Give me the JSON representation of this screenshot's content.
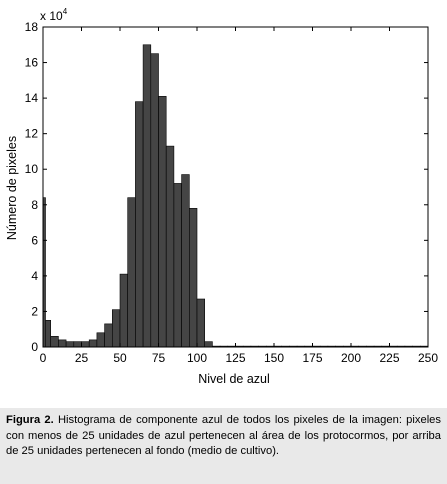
{
  "chart_data": {
    "type": "bar",
    "xlabel": "Nivel de azul",
    "ylabel": "Número de pixeles",
    "y_multiplier_label": "x 10",
    "y_multiplier_exponent": "4",
    "xlim": [
      0,
      250
    ],
    "ylim": [
      0,
      18
    ],
    "x_ticks": [
      "0",
      "25",
      "50",
      "75",
      "100",
      "125",
      "150",
      "175",
      "200",
      "225",
      "250"
    ],
    "y_ticks": [
      "0",
      "2",
      "4",
      "6",
      "8",
      "10",
      "12",
      "14",
      "16",
      "18"
    ],
    "bar_width": 5,
    "bar_color": "#454545",
    "bins": [
      0,
      5,
      10,
      15,
      20,
      25,
      30,
      35,
      40,
      45,
      50,
      55,
      60,
      65,
      70,
      75,
      80,
      85,
      90,
      95,
      100,
      105,
      110,
      115,
      120,
      125,
      130,
      135,
      140,
      145,
      150,
      155,
      160,
      165,
      170,
      175,
      180,
      185,
      190,
      195,
      200,
      205,
      210,
      215,
      220,
      225,
      230,
      235,
      240,
      245
    ],
    "values": [
      1.5,
      0.6,
      0.4,
      0.3,
      0.3,
      0.3,
      0.4,
      0.8,
      1.3,
      2.1,
      4.1,
      8.4,
      13.8,
      17.0,
      16.5,
      14.1,
      11.3,
      9.2,
      9.7,
      7.8,
      2.7,
      0.3,
      0.05,
      0.05,
      0.05,
      0.05,
      0.05,
      0.05,
      0.05,
      0.05,
      0.05,
      0.05,
      0.05,
      0.05,
      0.05,
      0.05,
      0.05,
      0.05,
      0.05,
      0.05,
      0.05,
      0.05,
      0.05,
      0.05,
      0.05,
      0.05,
      0.05,
      0.05,
      0.05,
      0.05
    ],
    "spike": {
      "x": 0,
      "value": 8.4
    },
    "grid": false
  },
  "caption": {
    "label": "Figura 2.",
    "text": " Histograma de componente azul de todos los pixeles de la imagen: pixeles con menos de 25 unidades de azul pertenecen al área de los protocormos, por arriba de 25 unidades pertenecen al fondo (medio de cultivo)."
  }
}
